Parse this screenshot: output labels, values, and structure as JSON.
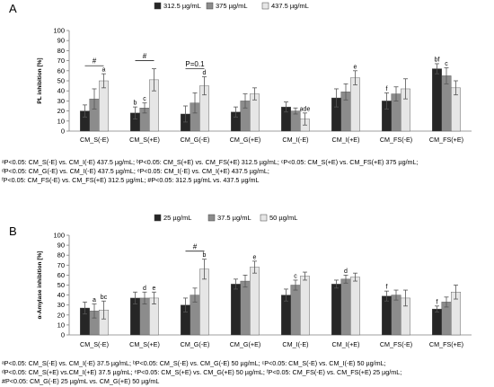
{
  "panels": [
    {
      "label": "A",
      "chart_data": {
        "type": "bar",
        "title": "",
        "xlabel": "",
        "ylabel": "PL inhibition [%]",
        "ylim": [
          0,
          100
        ],
        "yticks": [
          0,
          10,
          20,
          30,
          40,
          50,
          60,
          70,
          80,
          90,
          100
        ],
        "categories": [
          "CM_S(-E)",
          "CM_S(+E)",
          "CM_G(-E)",
          "CM_G(+E)",
          "CM_I(-E)",
          "CM_I(+E)",
          "CM_FS(-E)",
          "CM_FS(+E)"
        ],
        "legend_position": "top",
        "grid": false,
        "series": [
          {
            "name": "312.5 µg/mL",
            "color": "#262626",
            "values": [
              20,
              18,
              17,
              19,
              24,
              33,
              30,
              62
            ],
            "errors": [
              6,
              6,
              8,
              5,
              5,
              9,
              8,
              5
            ],
            "labels": [
              "",
              "b",
              "",
              "",
              "",
              "",
              "f",
              "bf"
            ]
          },
          {
            "name": "375 µg/mL",
            "color": "#8c8c8c",
            "values": [
              32,
              23,
              28,
              30,
              20,
              39,
              37,
              55
            ],
            "errors": [
              10,
              5,
              10,
              7,
              3,
              8,
              7,
              8
            ],
            "labels": [
              "",
              "c",
              "",
              "",
              "",
              "",
              "",
              "c"
            ]
          },
          {
            "name": "437.5 µg/mL",
            "color": "#e6e6e6",
            "values": [
              50,
              51,
              45,
              37,
              12,
              53,
              42,
              43
            ],
            "errors": [
              7,
              11,
              9,
              6,
              6,
              7,
              10,
              7
            ],
            "labels": [
              "a",
              "",
              "d",
              "",
              "ade",
              "e",
              "",
              ""
            ]
          }
        ],
        "brackets": [
          {
            "from": 0,
            "to": 0,
            "text": "#"
          },
          {
            "from": 1,
            "to": 1,
            "text": "#"
          },
          {
            "from": 2,
            "to": 2,
            "text": "P=0.1"
          }
        ]
      },
      "footnotes": [
        "ᵃP<0.05: CM_S(-E) vs. CM_I(-E) 437.5 µg/mL; ᵇP<0.05: CM_S(+E) vs. CM_FS(+E) 312.5 µg/mL; ᶜP<0.05: CM_S(+E) vs. CM_FS(+E) 375 µg/mL;",
        "ᵈP<0.05: CM_G(-E) vs. CM_I(-E) 437.5 µg/mL; ᵉP<0.05: CM_I(-E) vs. CM_I(+E) 437.5 µg/mL;",
        "ᶠP<0.05: CM_FS(-E) vs. CM_FS(+E) 312.5 µg/mL; #P<0.05: 312.5 µg/mL vs. 437.5 µg/mL"
      ]
    },
    {
      "label": "B",
      "chart_data": {
        "type": "bar",
        "title": "",
        "xlabel": "",
        "ylabel": "α-Amylase inhibition [%]",
        "ylim": [
          0,
          100
        ],
        "yticks": [
          0,
          10,
          20,
          30,
          40,
          50,
          60,
          70,
          80,
          90,
          100
        ],
        "categories": [
          "CM_S(-E)",
          "CM_S(+E)",
          "CM_G(-E)",
          "CM_G(+E)",
          "CM_I(-E)",
          "CM_I(+E)",
          "CM_FS(-E)",
          "CM_FS(+E)"
        ],
        "legend_position": "top",
        "grid": false,
        "series": [
          {
            "name": "25 µg/mL",
            "color": "#262626",
            "values": [
              27,
              37,
              30,
              51,
              40,
              51,
              39,
              26
            ],
            "errors": [
              6,
              6,
              7,
              5,
              6,
              4,
              5,
              3
            ],
            "labels": [
              "",
              "",
              "",
              "",
              "",
              "",
              "f",
              "f"
            ]
          },
          {
            "name": "37.5 µg/mL",
            "color": "#8c8c8c",
            "values": [
              24,
              37,
              40,
              54,
              50,
              56,
              40,
              33
            ],
            "errors": [
              7,
              6,
              7,
              6,
              5,
              4,
              5,
              5
            ],
            "labels": [
              "a",
              "d",
              "",
              "",
              "c",
              "d",
              "",
              ""
            ]
          },
          {
            "name": "50 µg/mL",
            "color": "#e6e6e6",
            "values": [
              25,
              37,
              66,
              68,
              59,
              58,
              37,
              43
            ],
            "errors": [
              9,
              6,
              10,
              6,
              4,
              4,
              8,
              7
            ],
            "labels": [
              "bc",
              "e",
              "b",
              "e",
              "",
              "",
              "",
              ""
            ]
          }
        ],
        "brackets": [
          {
            "from": 2,
            "to": 2,
            "text": "#"
          }
        ]
      },
      "footnotes": [
        "ᵃP<0.05: CM_S(-E) vs. CM_I(-E) 37.5 µg/mL; ᵇP<0.05: CM_S(-E) vs. CM_G(-E) 50 µg/mL; ᶜP<0.05: CM_S(-E) vs. CM_I(-E) 50 µg/mL;",
        "ᵈP<0.05: CM_S(+E) vs.CM_I(+E) 37.5 µg/mL; ᵉP<0.05: CM_S(+E) vs. CM_G(+E) 50 µg/mL; ᶠP<0.05: CM_FS(-E) vs. CM_FS(+E) 25 µg/mL;",
        "#P<0.05: CM_G(-E) 25 µg/mL vs. CM_G(+E) 50 µg/mL"
      ]
    }
  ]
}
